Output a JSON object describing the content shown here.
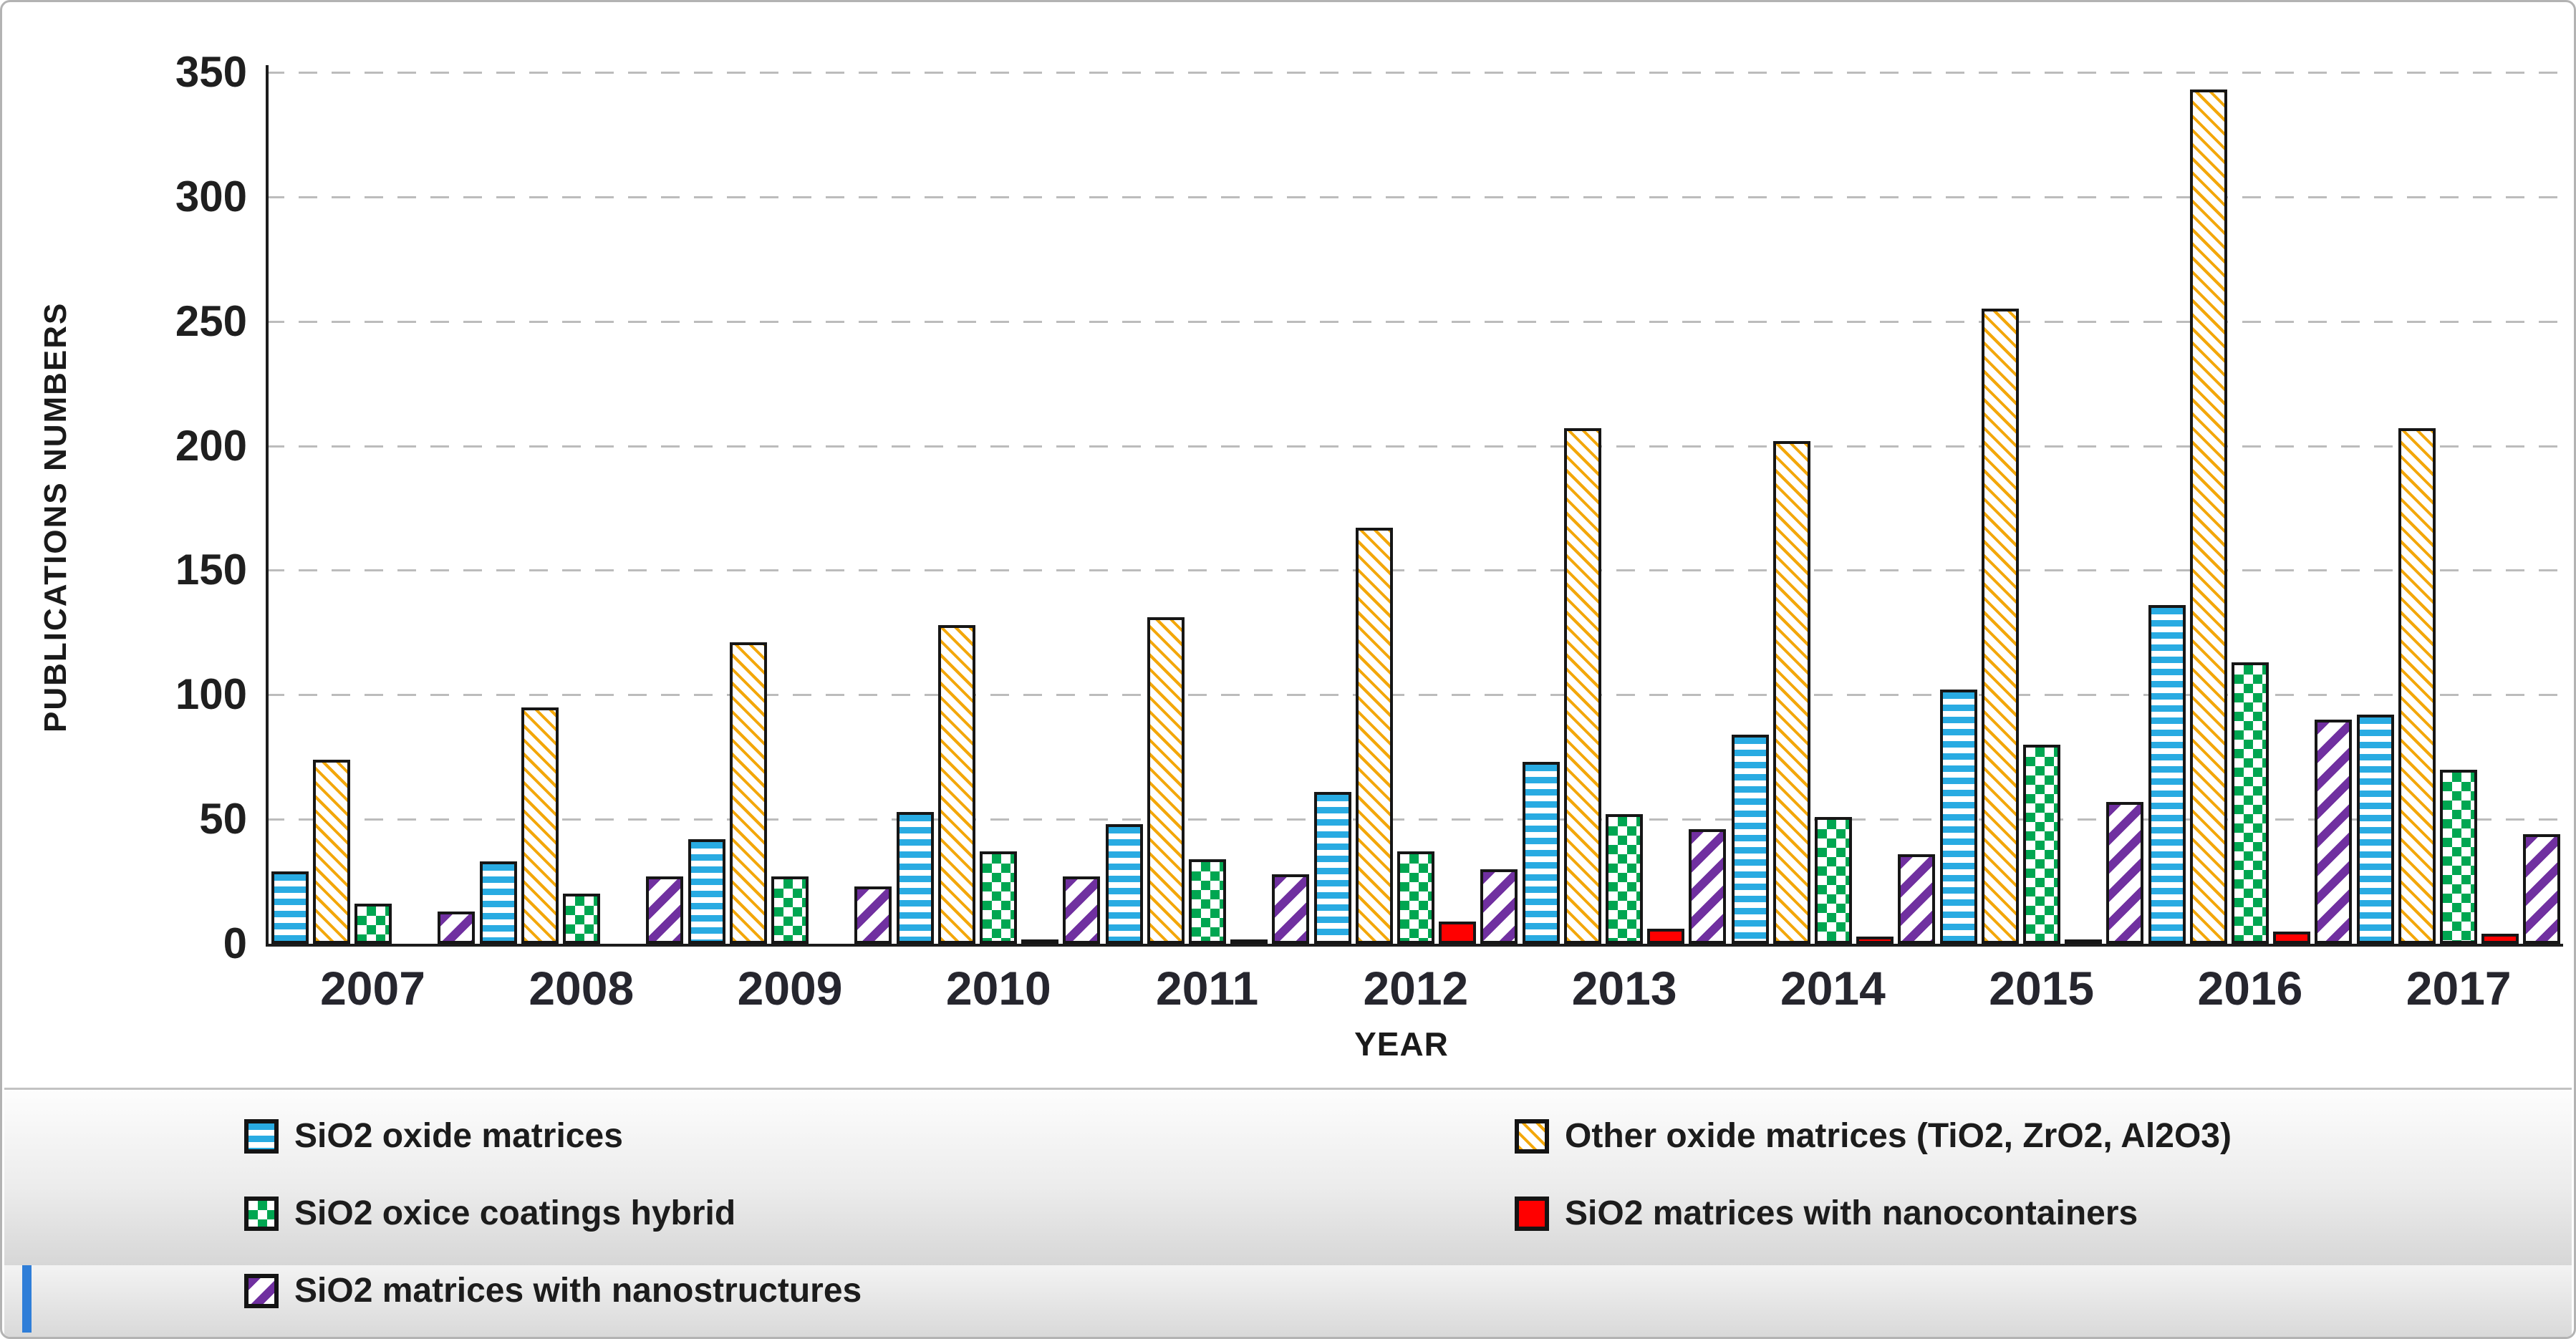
{
  "chart_data": {
    "type": "bar",
    "title": "",
    "xlabel": "YEAR",
    "ylabel": "PUBLICATIONS NUMBERS",
    "ylim": [
      0,
      350
    ],
    "y_ticks": [
      0,
      50,
      100,
      150,
      200,
      250,
      300,
      350
    ],
    "grid": "horizontal-dashed",
    "legend_position": "bottom",
    "categories": [
      "2007",
      "2008",
      "2009",
      "2010",
      "2011",
      "2012",
      "2013",
      "2014",
      "2015",
      "2016",
      "2017"
    ],
    "series": [
      {
        "name": "SiO2 oxide matrices",
        "color": "#29abe2",
        "pattern": "horizontal-stripes",
        "values": [
          29,
          33,
          42,
          53,
          48,
          61,
          73,
          84,
          102,
          136,
          92
        ]
      },
      {
        "name": "Other oxide matrices (TiO2, ZrO2, Al2O3)",
        "color": "#f3a70a",
        "pattern": "thin-diagonal-stripes",
        "values": [
          74,
          95,
          121,
          128,
          131,
          167,
          207,
          202,
          255,
          343,
          207
        ]
      },
      {
        "name": "SiO2 oxice coatings hybrid",
        "color": "#00a651",
        "pattern": "checkerboard",
        "values": [
          16,
          20,
          27,
          37,
          34,
          37,
          52,
          51,
          80,
          113,
          70
        ]
      },
      {
        "name": "SiO2 matrices with nanocontainers",
        "color": "#ff0000",
        "pattern": "solid",
        "values": [
          0,
          0,
          0,
          1,
          1,
          9,
          6,
          3,
          1,
          5,
          4
        ]
      },
      {
        "name": "SiO2 matrices with nanostructures",
        "color": "#7030a0",
        "pattern": "wide-diagonal-stripes",
        "values": [
          13,
          27,
          23,
          27,
          28,
          30,
          46,
          36,
          57,
          90,
          44
        ]
      }
    ]
  }
}
